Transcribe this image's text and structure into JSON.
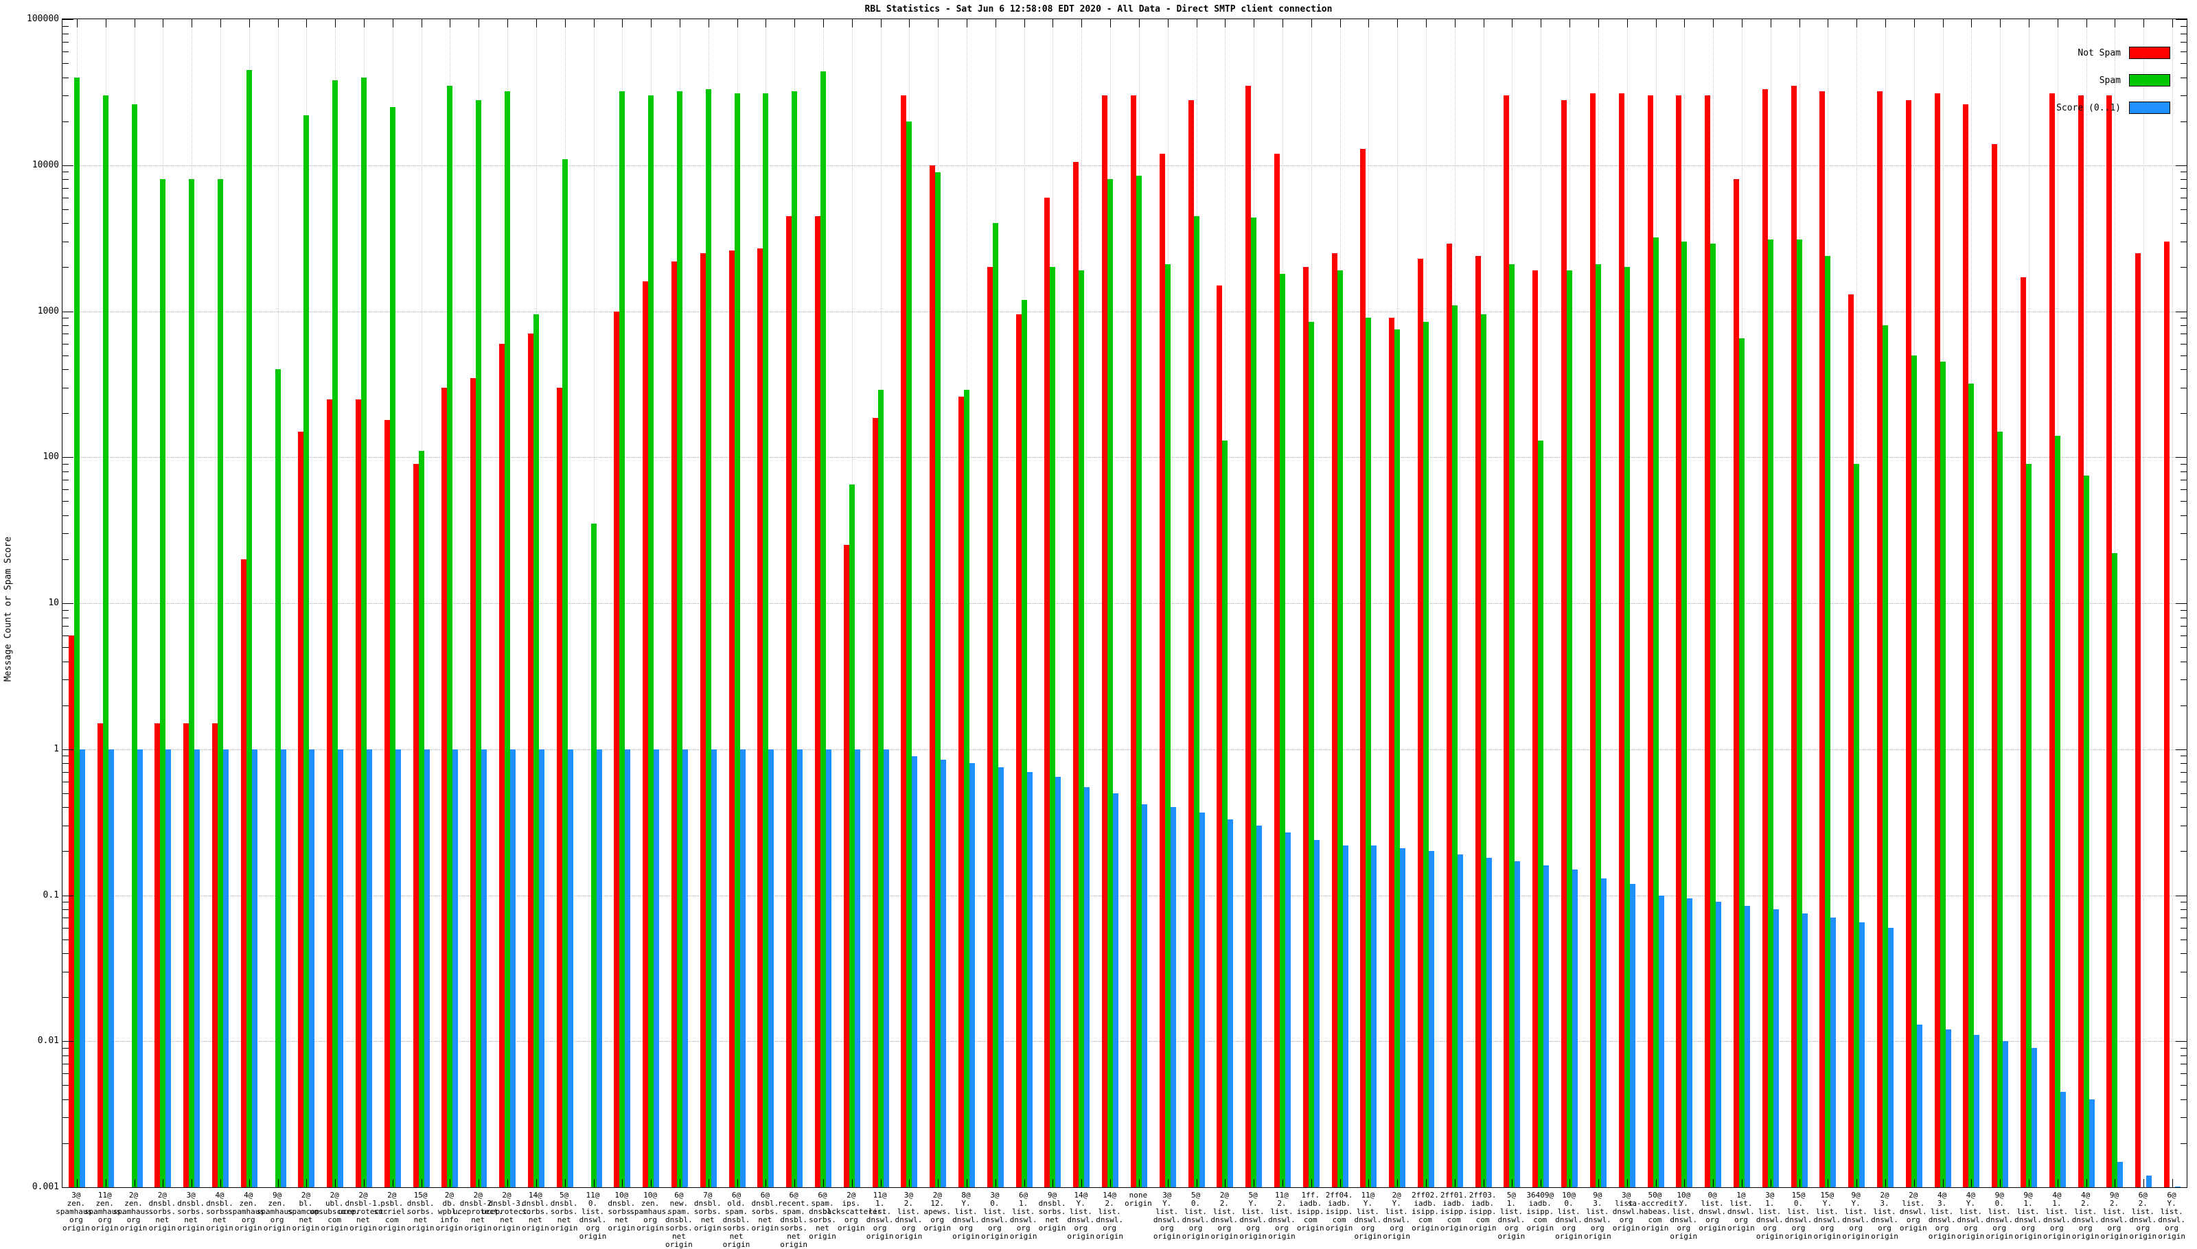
{
  "title": "RBL Statistics - Sat Jun  6 12:58:08 EDT 2020 - All Data - Direct SMTP client connection",
  "y_axis": {
    "label": "Message Count or Spam Score",
    "ticks": [
      "100000",
      "10000",
      "1000",
      "100",
      "10",
      "1",
      "0.1",
      "0.01",
      "0.001"
    ],
    "scale": "log",
    "min": 0.001,
    "max": 100000
  },
  "legend": {
    "entries": [
      {
        "label": "Not Spam",
        "color": "#ff0000"
      },
      {
        "label": "Spam",
        "color": "#00c800"
      },
      {
        "label": "Score (0..1)",
        "color": "#1e90ff"
      }
    ]
  },
  "chart_data": {
    "type": "bar",
    "scale": "log",
    "ylim": [
      0.001,
      100000
    ],
    "grid": true,
    "legend_position": "top-right",
    "title": "RBL Statistics - Sat Jun  6 12:58:08 EDT 2020 - All Data - Direct SMTP client connection",
    "ylabel": "Message Count or Spam Score",
    "series_names": [
      "Not Spam",
      "Spam",
      "Score (0..1)"
    ],
    "series_colors": [
      "#ff0000",
      "#00c800",
      "#1e90ff"
    ],
    "groups": [
      {
        "label": "3@zen.spamhaus.org origin",
        "not_spam": 6,
        "spam": 40000,
        "score": 1
      },
      {
        "label": "11@zen.spamhaus.org origin",
        "not_spam": 1.5,
        "spam": 30000,
        "score": 1
      },
      {
        "label": "2@zen.spamhaus.org origin",
        "not_spam": 0,
        "spam": 26000,
        "score": 1
      },
      {
        "label": "2@dnsbl.sorbs.net origin",
        "not_spam": 1.5,
        "spam": 8000,
        "score": 1
      },
      {
        "label": "3@dnsbl.sorbs.net origin",
        "not_spam": 1.5,
        "spam": 8000,
        "score": 1
      },
      {
        "label": "4@dnsbl.sorbs.net origin",
        "not_spam": 1.5,
        "spam": 8000,
        "score": 1
      },
      {
        "label": "4@zen.spamhaus.org origin",
        "not_spam": 20,
        "spam": 45000,
        "score": 1
      },
      {
        "label": "9@zen.spamhaus.org origin",
        "not_spam": 0,
        "spam": 400,
        "score": 1
      },
      {
        "label": "2@bl.spamcop.net origin",
        "not_spam": 150,
        "spam": 22000,
        "score": 1
      },
      {
        "label": "2@ubl.unsubscore.com origin",
        "not_spam": 250,
        "spam": 38000,
        "score": 1
      },
      {
        "label": "2@dnsbl-1.uceprotect.net origin",
        "not_spam": 250,
        "spam": 40000,
        "score": 1
      },
      {
        "label": "2@psbl.surriel.com origin",
        "not_spam": 180,
        "spam": 25000,
        "score": 1
      },
      {
        "label": "15@dnsbl.sorbs.net origin",
        "not_spam": 90,
        "spam": 110,
        "score": 1
      },
      {
        "label": "2@db.wpbl.info origin",
        "not_spam": 300,
        "spam": 35000,
        "score": 1
      },
      {
        "label": "2@dnsbl-2.uceprotect.net origin",
        "not_spam": 350,
        "spam": 28000,
        "score": 1
      },
      {
        "label": "2@dnsbl-3.uceprotect.net origin",
        "not_spam": 600,
        "spam": 32000,
        "score": 1
      },
      {
        "label": "14@dnsbl.sorbs.net origin",
        "not_spam": 700,
        "spam": 950,
        "score": 1
      },
      {
        "label": "5@dnsbl.sorbs.net origin",
        "not_spam": 300,
        "spam": 11000,
        "score": 1
      },
      {
        "label": "11@0.list.dnswl.org origin",
        "not_spam": 0,
        "spam": 35,
        "score": 1
      },
      {
        "label": "10@dnsbl.sorbs.net origin",
        "not_spam": 1000,
        "spam": 32000,
        "score": 1
      },
      {
        "label": "10@zen.spamhaus.org origin",
        "not_spam": 1600,
        "spam": 30000,
        "score": 1
      },
      {
        "label": "6@new.spam.dnsbl.sorbs.net origin",
        "not_spam": 2200,
        "spam": 32000,
        "score": 1
      },
      {
        "label": "7@dnsbl.sorbs.net origin",
        "not_spam": 2500,
        "spam": 33000,
        "score": 1
      },
      {
        "label": "6@old.spam.dnsbl.sorbs.net origin",
        "not_spam": 2600,
        "spam": 31000,
        "score": 1
      },
      {
        "label": "6@dnsbl.sorbs.net origin",
        "not_spam": 2700,
        "spam": 31000,
        "score": 1
      },
      {
        "label": "6@recent.spam.dnsbl.sorbs.net origin",
        "not_spam": 4500,
        "spam": 32000,
        "score": 1
      },
      {
        "label": "6@spam.dnsbl.sorbs.net origin",
        "not_spam": 4500,
        "spam": 44000,
        "score": 1
      },
      {
        "label": "2@ips.backscatterer.org origin",
        "not_spam": 25,
        "spam": 65,
        "score": 1
      },
      {
        "label": "11@1.list.dnswl.org origin",
        "not_spam": 185,
        "spam": 290,
        "score": 1
      },
      {
        "label": "3@2.list.dnswl.org origin",
        "not_spam": 30000,
        "spam": 20000,
        "score": 0.9
      },
      {
        "label": "2@12.apews.org origin",
        "not_spam": 10000,
        "spam": 9000,
        "score": 0.85
      },
      {
        "label": "8@Y.list.dnswl.org origin",
        "not_spam": 260,
        "spam": 290,
        "score": 0.8
      },
      {
        "label": "3@0.list.dnswl.org origin",
        "not_spam": 2000,
        "spam": 4000,
        "score": 0.75
      },
      {
        "label": "6@1.list.dnswl.org origin",
        "not_spam": 950,
        "spam": 1200,
        "score": 0.7
      },
      {
        "label": "9@dnsbl.sorbs.net origin",
        "not_spam": 6000,
        "spam": 2000,
        "score": 0.65
      },
      {
        "label": "14@Y.list.dnswl.org origin",
        "not_spam": 10500,
        "spam": 1900,
        "score": 0.55
      },
      {
        "label": "14@2.list.dnswl.org origin",
        "not_spam": 30000,
        "spam": 8000,
        "score": 0.5
      },
      {
        "label": "none origin",
        "not_spam": 30000,
        "spam": 8500,
        "score": 0.42
      },
      {
        "label": "3@Y.list.dnswl.org origin",
        "not_spam": 12000,
        "spam": 2100,
        "score": 0.4
      },
      {
        "label": "5@0.list.dnswl.org origin",
        "not_spam": 28000,
        "spam": 4500,
        "score": 0.37
      },
      {
        "label": "2@2.list.dnswl.org origin",
        "not_spam": 1500,
        "spam": 130,
        "score": 0.33
      },
      {
        "label": "5@Y.list.dnswl.org origin",
        "not_spam": 35000,
        "spam": 4400,
        "score": 0.3
      },
      {
        "label": "11@2.list.dnswl.org origin",
        "not_spam": 12000,
        "spam": 1800,
        "score": 0.27
      },
      {
        "label": "1ff.iadb.isipp.com origin",
        "not_spam": 2000,
        "spam": 850,
        "score": 0.24
      },
      {
        "label": "2ff04.iadb.isipp.com origin",
        "not_spam": 2500,
        "spam": 1900,
        "score": 0.22
      },
      {
        "label": "11@Y.list.dnswl.org origin",
        "not_spam": 13000,
        "spam": 900,
        "score": 0.22
      },
      {
        "label": "2@Y.list.dnswl.org origin",
        "not_spam": 900,
        "spam": 750,
        "score": 0.21
      },
      {
        "label": "2ff02.iadb.isipp.com origin",
        "not_spam": 2300,
        "spam": 850,
        "score": 0.2
      },
      {
        "label": "2ff01.iadb.isipp.com origin",
        "not_spam": 2900,
        "spam": 1100,
        "score": 0.19
      },
      {
        "label": "2ff03.iadb.isipp.com origin",
        "not_spam": 2400,
        "spam": 950,
        "score": 0.18
      },
      {
        "label": "5@1.list.dnswl.org origin",
        "not_spam": 30000,
        "spam": 2100,
        "score": 0.17
      },
      {
        "label": "36409@iadb.isipp.com origin",
        "not_spam": 1900,
        "spam": 130,
        "score": 0.16
      },
      {
        "label": "10@0.list.dnswl.org origin",
        "not_spam": 28000,
        "spam": 1900,
        "score": 0.15
      },
      {
        "label": "9@3.list.dnswl.org origin",
        "not_spam": 31000,
        "spam": 2100,
        "score": 0.13
      },
      {
        "label": "3@list.dnswl.org origin",
        "not_spam": 31000,
        "spam": 2000,
        "score": 0.12
      },
      {
        "label": "50@sa-accredit.habeas.com origin",
        "not_spam": 30000,
        "spam": 3200,
        "score": 0.1
      },
      {
        "label": "10@Y.list.dnswl.org origin",
        "not_spam": 30000,
        "spam": 3000,
        "score": 0.095
      },
      {
        "label": "0@list.dnswl.org origin",
        "not_spam": 30000,
        "spam": 2900,
        "score": 0.09
      },
      {
        "label": "1@list.dnswl.org origin",
        "not_spam": 8000,
        "spam": 650,
        "score": 0.085
      },
      {
        "label": "3@1.list.dnswl.org origin",
        "not_spam": 33000,
        "spam": 3100,
        "score": 0.08
      },
      {
        "label": "15@0.list.dnswl.org origin",
        "not_spam": 35000,
        "spam": 3100,
        "score": 0.075
      },
      {
        "label": "15@Y.list.dnswl.org origin",
        "not_spam": 32000,
        "spam": 2400,
        "score": 0.07
      },
      {
        "label": "9@Y.list.dnswl.org origin",
        "not_spam": 1300,
        "spam": 90,
        "score": 0.065
      },
      {
        "label": "2@3.list.dnswl.org origin",
        "not_spam": 32000,
        "spam": 800,
        "score": 0.06
      },
      {
        "label": "2@list.dnswl.org origin",
        "not_spam": 28000,
        "spam": 500,
        "score": 0.013
      },
      {
        "label": "4@3.list.dnswl.org origin",
        "not_spam": 31000,
        "spam": 450,
        "score": 0.012
      },
      {
        "label": "4@Y.list.dnswl.org origin",
        "not_spam": 26000,
        "spam": 320,
        "score": 0.011
      },
      {
        "label": "9@0.list.dnswl.org origin",
        "not_spam": 14000,
        "spam": 150,
        "score": 0.01
      },
      {
        "label": "9@1.list.dnswl.org origin",
        "not_spam": 1700,
        "spam": 90,
        "score": 0.009
      },
      {
        "label": "4@1.list.dnswl.org origin",
        "not_spam": 31000,
        "spam": 140,
        "score": 0.0045
      },
      {
        "label": "4@2.list.dnswl.org origin",
        "not_spam": 30000,
        "spam": 75,
        "score": 0.004
      },
      {
        "label": "9@2.list.dnswl.org origin",
        "not_spam": 30000,
        "spam": 22,
        "score": 0.0015
      },
      {
        "label": "6@2.list.dnswl.org origin",
        "not_spam": 2500,
        "spam": 0,
        "score": 0.0012
      },
      {
        "label": "6@Y.list.dnswl.org origin",
        "not_spam": 3000,
        "spam": 0,
        "score": 0.001
      }
    ]
  }
}
